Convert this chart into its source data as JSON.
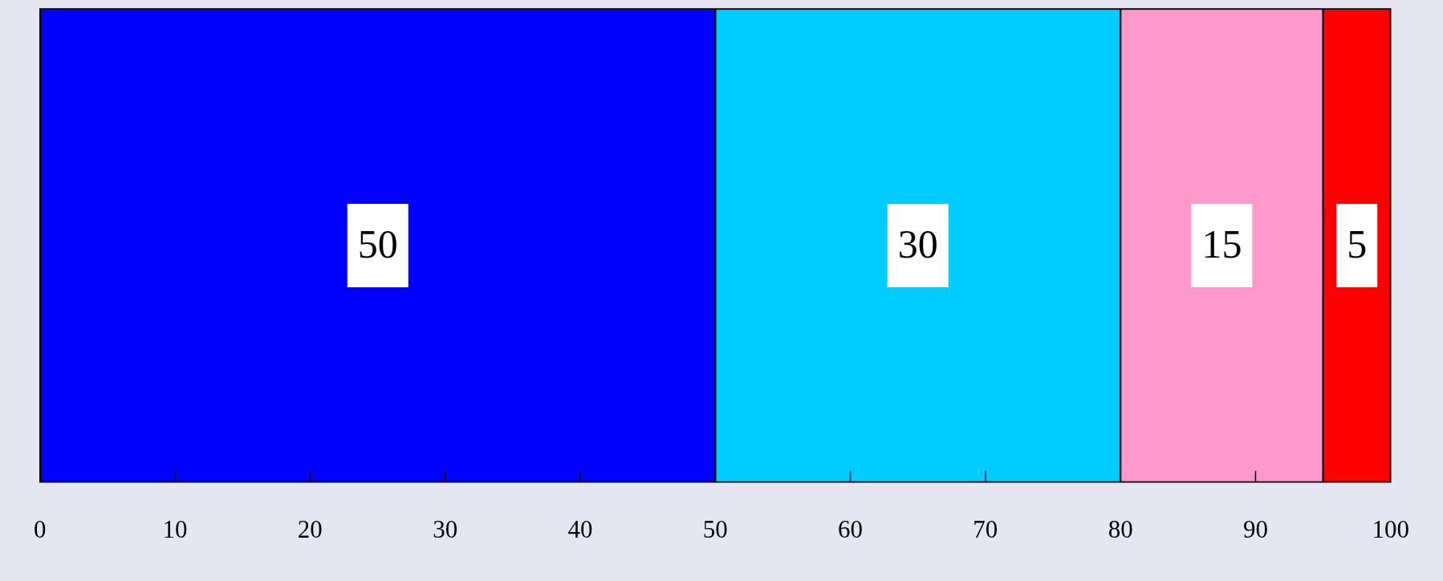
{
  "chart_data": {
    "type": "bar",
    "orientation": "horizontal",
    "stacked": true,
    "categories": [
      null
    ],
    "series": [
      {
        "color": "#0000ff",
        "values": [
          50
        ]
      },
      {
        "color": "#00ccff",
        "values": [
          30
        ]
      },
      {
        "color": "#ff99cc",
        "values": [
          15
        ]
      },
      {
        "color": "#ff0000",
        "values": [
          5
        ]
      }
    ],
    "xlim": [
      0,
      100
    ],
    "xticks": [
      0,
      10,
      20,
      30,
      40,
      50,
      60,
      70,
      80,
      90,
      100
    ],
    "data_labels": true,
    "grid": false,
    "legend": false
  }
}
